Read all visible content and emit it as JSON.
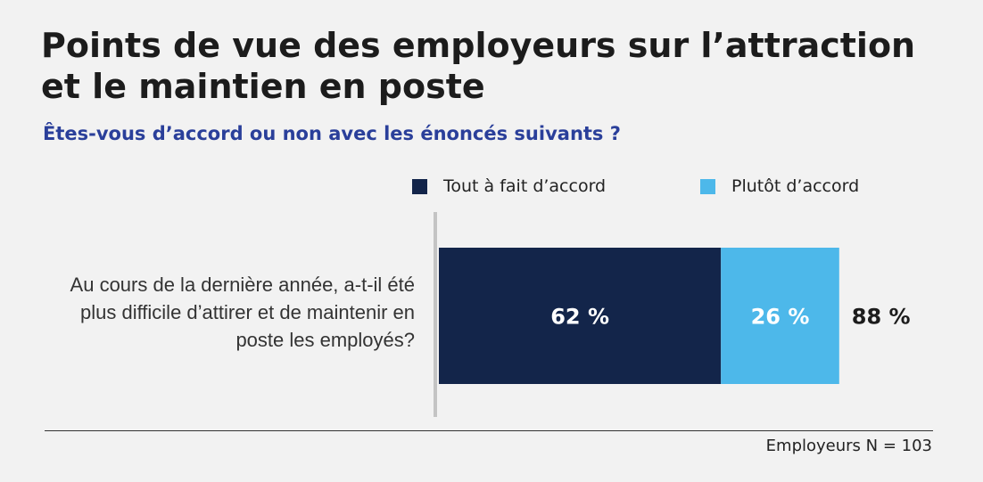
{
  "chart_data": {
    "type": "bar",
    "orientation": "horizontal",
    "stacked": true,
    "title": "Points de vue des employeurs sur l’attraction et le maintien en poste",
    "subtitle": "Êtes-vous d’accord ou non avec les énoncés suivants ?",
    "categories": [
      "Au cours de la dernière année, a-t-il été plus difficile d’attirer et de maintenir en poste les employés?"
    ],
    "series": [
      {
        "name": "Tout à fait d’accord",
        "values": [
          62
        ],
        "color": "#13254a",
        "label": "62 %"
      },
      {
        "name": "Plutôt d’accord",
        "values": [
          26
        ],
        "color": "#4db8ea",
        "label": "26 %"
      }
    ],
    "totals": [
      88
    ],
    "total_labels": [
      "88 %"
    ],
    "xlim": [
      0,
      100
    ],
    "legend_position": "top",
    "grid": false,
    "note": "Employeurs N = 103"
  }
}
